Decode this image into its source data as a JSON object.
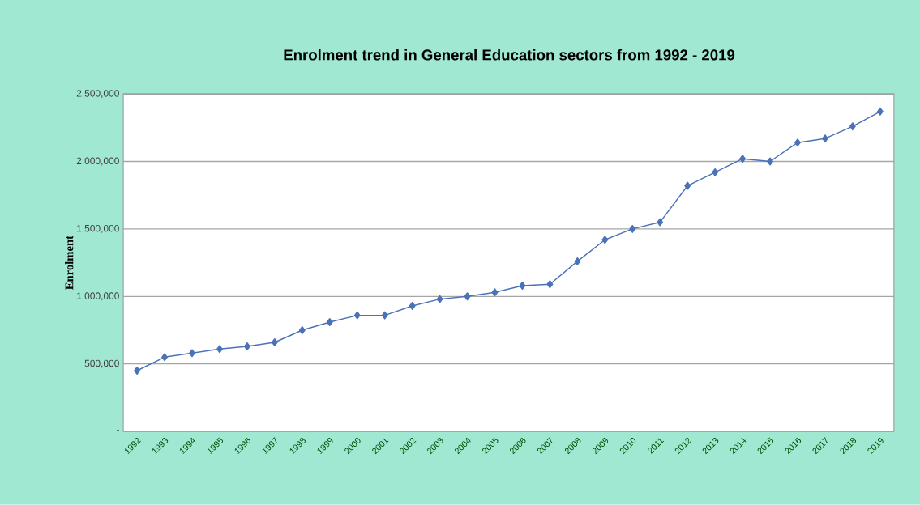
{
  "chart_data": {
    "type": "line",
    "title": "Enrolment trend in General Education sectors from 1992 - 2019",
    "ylabel": "Enrolment",
    "categories": [
      "1992",
      "1993",
      "1994",
      "1995",
      "1996",
      "1997",
      "1998",
      "1999",
      "2000",
      "2001",
      "2002",
      "2003",
      "2004",
      "2005",
      "2006",
      "2007",
      "2008",
      "2009",
      "2010",
      "2011",
      "2012",
      "2013",
      "2014",
      "2015",
      "2016",
      "2017",
      "2018",
      "2019"
    ],
    "series": [
      {
        "color": "#4a72b8",
        "values": [
          450000,
          550000,
          580000,
          610000,
          630000,
          660000,
          750000,
          810000,
          860000,
          860000,
          930000,
          980000,
          1000000,
          1030000,
          1080000,
          1090000,
          1260000,
          1420000,
          1500000,
          1550000,
          1820000,
          1920000,
          2020000,
          2000000,
          2140000,
          2170000,
          2260000,
          2370000
        ]
      }
    ],
    "ylim": [
      0,
      2500000
    ],
    "yticks": [
      {
        "value": 0,
        "label": "-"
      },
      {
        "value": 500000,
        "label": "500,000"
      },
      {
        "value": 1000000,
        "label": "1,000,000"
      },
      {
        "value": 1500000,
        "label": "1,500,000"
      },
      {
        "value": 2000000,
        "label": "2,000,000"
      },
      {
        "value": 2500000,
        "label": "2,500,000"
      }
    ],
    "grid": "y",
    "marker": "diamond",
    "line_style": "solid"
  }
}
